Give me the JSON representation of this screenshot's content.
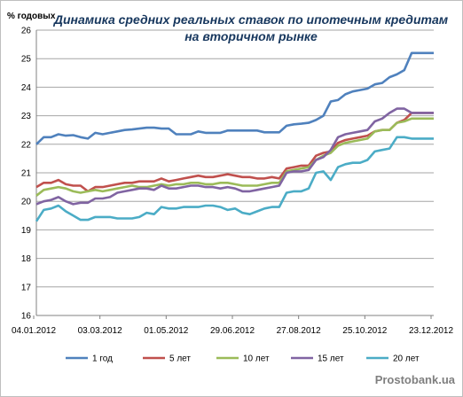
{
  "chart_data": {
    "type": "line",
    "title_lines": [
      "Динамика средних реальных ставок по ипотечным кредитам",
      "на вторичном рынке"
    ],
    "ylabel": "% годовых",
    "ylim": [
      16,
      26
    ],
    "yticks": [
      16,
      17,
      18,
      19,
      20,
      21,
      22,
      23,
      24,
      25,
      26
    ],
    "grid": "horizontal",
    "legend_position": "bottom",
    "x_tick_labels": [
      "04.01.2012",
      "03.03.2012",
      "01.05.2012",
      "29.06.2012",
      "27.08.2012",
      "25.10.2012",
      "23.12.2012"
    ],
    "watermark": "Prostobank.ua",
    "series": [
      {
        "name": "1 год",
        "color": "#4f81bd",
        "values": [
          22.0,
          22.25,
          22.25,
          22.35,
          22.3,
          22.32,
          22.25,
          22.2,
          22.4,
          22.35,
          22.4,
          22.45,
          22.5,
          22.52,
          22.55,
          22.58,
          22.58,
          22.55,
          22.55,
          22.35,
          22.35,
          22.35,
          22.45,
          22.4,
          22.4,
          22.4,
          22.48,
          22.48,
          22.48,
          22.48,
          22.48,
          22.42,
          22.42,
          22.42,
          22.65,
          22.7,
          22.72,
          22.75,
          22.85,
          23.0,
          23.5,
          23.55,
          23.75,
          23.85,
          23.9,
          23.95,
          24.1,
          24.15,
          24.35,
          24.45,
          24.6,
          25.2,
          25.2,
          25.2,
          25.2
        ]
      },
      {
        "name": "5 лет",
        "color": "#c0504d",
        "values": [
          20.5,
          20.65,
          20.65,
          20.75,
          20.6,
          20.55,
          20.55,
          20.35,
          20.5,
          20.5,
          20.55,
          20.6,
          20.65,
          20.65,
          20.7,
          20.7,
          20.7,
          20.8,
          20.7,
          20.75,
          20.8,
          20.85,
          20.9,
          20.85,
          20.85,
          20.9,
          20.95,
          20.9,
          20.85,
          20.85,
          20.8,
          20.8,
          20.85,
          20.8,
          21.15,
          21.2,
          21.25,
          21.25,
          21.6,
          21.7,
          21.75,
          22.05,
          22.15,
          22.2,
          22.25,
          22.3,
          22.45,
          22.5,
          22.5,
          22.75,
          22.85,
          23.1,
          23.1,
          23.1,
          23.1
        ]
      },
      {
        "name": "10 лет",
        "color": "#9bbb59",
        "values": [
          20.2,
          20.4,
          20.45,
          20.5,
          20.45,
          20.35,
          20.3,
          20.35,
          20.4,
          20.35,
          20.4,
          20.45,
          20.5,
          20.55,
          20.5,
          20.5,
          20.55,
          20.6,
          20.55,
          20.6,
          20.6,
          20.65,
          20.65,
          20.6,
          20.6,
          20.65,
          20.65,
          20.6,
          20.55,
          20.55,
          20.55,
          20.6,
          20.65,
          20.65,
          21.05,
          21.1,
          21.15,
          21.2,
          21.45,
          21.6,
          21.7,
          21.95,
          22.05,
          22.1,
          22.15,
          22.2,
          22.45,
          22.5,
          22.5,
          22.75,
          22.8,
          22.9,
          22.9,
          22.9,
          22.9
        ]
      },
      {
        "name": "15 лет",
        "color": "#8064a2",
        "values": [
          19.9,
          20.0,
          20.05,
          20.15,
          20.0,
          19.9,
          19.95,
          19.95,
          20.1,
          20.1,
          20.15,
          20.3,
          20.35,
          20.4,
          20.45,
          20.45,
          20.4,
          20.55,
          20.45,
          20.45,
          20.5,
          20.55,
          20.55,
          20.5,
          20.5,
          20.45,
          20.5,
          20.45,
          20.35,
          20.35,
          20.4,
          20.45,
          20.5,
          20.55,
          21.0,
          21.05,
          21.05,
          21.1,
          21.45,
          21.55,
          21.8,
          22.25,
          22.35,
          22.4,
          22.45,
          22.5,
          22.8,
          22.9,
          23.1,
          23.25,
          23.25,
          23.1,
          23.1,
          23.1,
          23.1
        ]
      },
      {
        "name": "20 лет",
        "color": "#4bacc6",
        "values": [
          19.3,
          19.7,
          19.75,
          19.85,
          19.65,
          19.5,
          19.35,
          19.35,
          19.45,
          19.45,
          19.45,
          19.4,
          19.4,
          19.4,
          19.45,
          19.6,
          19.55,
          19.8,
          19.75,
          19.75,
          19.8,
          19.8,
          19.8,
          19.85,
          19.85,
          19.8,
          19.7,
          19.75,
          19.6,
          19.55,
          19.65,
          19.75,
          19.8,
          19.8,
          20.3,
          20.35,
          20.35,
          20.45,
          21.0,
          21.05,
          20.75,
          21.2,
          21.3,
          21.35,
          21.35,
          21.45,
          21.75,
          21.8,
          21.85,
          22.25,
          22.25,
          22.2,
          22.2,
          22.2,
          22.2
        ]
      }
    ]
  }
}
